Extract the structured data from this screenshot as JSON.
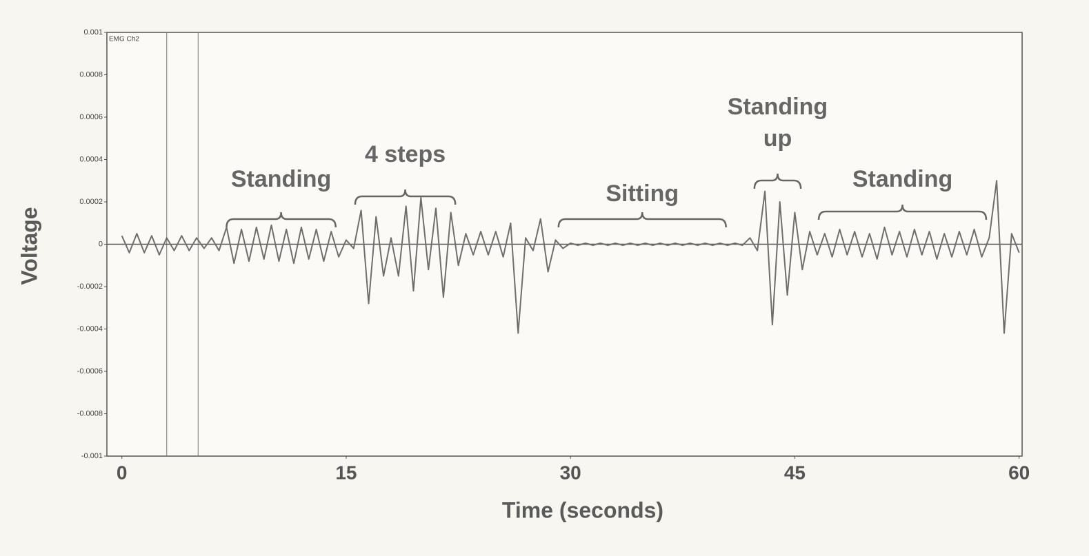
{
  "chart_data": {
    "type": "line",
    "channel_label": "EMG Ch2",
    "x_label": "Time (seconds)",
    "y_label": "Voltage",
    "xlim": [
      -1,
      60.2
    ],
    "ylim": [
      -0.001,
      0.001
    ],
    "xticks": [
      0,
      15,
      30,
      45,
      60
    ],
    "yticks": [
      -0.001,
      -0.0008,
      -0.0006,
      -0.0004,
      -0.0002,
      0,
      0.0002,
      0.0004,
      0.0006,
      0.0008,
      0.001
    ],
    "markers": [
      3,
      5.1
    ],
    "x": [
      0,
      0.5,
      1,
      1.5,
      2,
      2.5,
      3,
      3.5,
      4,
      4.5,
      5,
      5.5,
      6,
      6.5,
      7,
      7.5,
      8,
      8.5,
      9,
      9.5,
      10,
      10.5,
      11,
      11.5,
      12,
      12.5,
      13,
      13.5,
      14,
      14.5,
      15,
      15.5,
      16,
      16.5,
      17,
      17.5,
      18,
      18.5,
      19,
      19.5,
      20,
      20.5,
      21,
      21.5,
      22,
      22.5,
      23,
      23.5,
      24,
      24.5,
      25,
      25.5,
      26,
      26.5,
      27,
      27.5,
      28,
      28.5,
      29,
      29.5,
      30,
      30.5,
      31,
      31.5,
      32,
      32.5,
      33,
      33.5,
      34,
      34.5,
      35,
      35.5,
      36,
      36.5,
      37,
      37.5,
      38,
      38.5,
      39,
      39.5,
      40,
      40.5,
      41,
      41.5,
      42,
      42.5,
      43,
      43.5,
      44,
      44.5,
      45,
      45.5,
      46,
      46.5,
      47,
      47.5,
      48,
      48.5,
      49,
      49.5,
      50,
      50.5,
      51,
      51.5,
      52,
      52.5,
      53,
      53.5,
      54,
      54.5,
      55,
      55.5,
      56,
      56.5,
      57,
      57.5,
      58,
      58.5,
      59,
      59.5,
      60
    ],
    "series": [
      {
        "name": "EMG Ch2",
        "color": "#6e6e6e",
        "values": [
          4e-05,
          -4e-05,
          5e-05,
          -4e-05,
          4e-05,
          -5e-05,
          3e-05,
          -3e-05,
          4e-05,
          -3e-05,
          3e-05,
          -2e-05,
          3e-05,
          -3e-05,
          8e-05,
          -9e-05,
          7e-05,
          -8e-05,
          8e-05,
          -7e-05,
          9e-05,
          -8e-05,
          7e-05,
          -9e-05,
          8e-05,
          -7e-05,
          7e-05,
          -8e-05,
          6e-05,
          -6e-05,
          2e-05,
          -2e-05,
          0.00016,
          -0.00028,
          0.00013,
          -0.00015,
          3e-05,
          -0.00015,
          0.00018,
          -0.00022,
          0.00022,
          -0.00012,
          0.00017,
          -0.00025,
          0.00015,
          -0.0001,
          5e-05,
          -5e-05,
          6e-05,
          -5e-05,
          6e-05,
          -6e-05,
          0.0001,
          -0.00042,
          3e-05,
          -3e-05,
          0.00012,
          -0.00013,
          2e-05,
          -2e-05,
          5e-06,
          -5e-06,
          5e-06,
          -5e-06,
          5e-06,
          -5e-06,
          5e-06,
          -5e-06,
          5e-06,
          -5e-06,
          5e-06,
          -5e-06,
          5e-06,
          -5e-06,
          5e-06,
          -5e-06,
          5e-06,
          -5e-06,
          5e-06,
          -5e-06,
          5e-06,
          -5e-06,
          5e-06,
          -5e-06,
          3e-05,
          -3e-05,
          0.00025,
          -0.00038,
          0.0002,
          -0.00024,
          0.00015,
          -0.00012,
          6e-05,
          -5e-05,
          5e-05,
          -6e-05,
          7e-05,
          -5e-05,
          6e-05,
          -6e-05,
          5e-05,
          -7e-05,
          8e-05,
          -5e-05,
          6e-05,
          -6e-05,
          7e-05,
          -5e-05,
          6e-05,
          -7e-05,
          5e-05,
          -6e-05,
          6e-05,
          -5e-05,
          7e-05,
          -6e-05,
          3e-05,
          0.0003,
          -0.00042,
          5e-05,
          -4e-05
        ]
      }
    ],
    "annotations": [
      {
        "lines": [
          "Standing"
        ],
        "span": [
          7,
          14.3
        ]
      },
      {
        "lines": [
          "4 steps"
        ],
        "span": [
          15.6,
          22.3
        ]
      },
      {
        "lines": [
          "Sitting"
        ],
        "span": [
          29.2,
          40.4
        ]
      },
      {
        "lines": [
          "Standing",
          "up"
        ],
        "span": [
          42.3,
          45.4
        ]
      },
      {
        "lines": [
          "Standing"
        ],
        "span": [
          46.6,
          57.8
        ]
      }
    ]
  }
}
